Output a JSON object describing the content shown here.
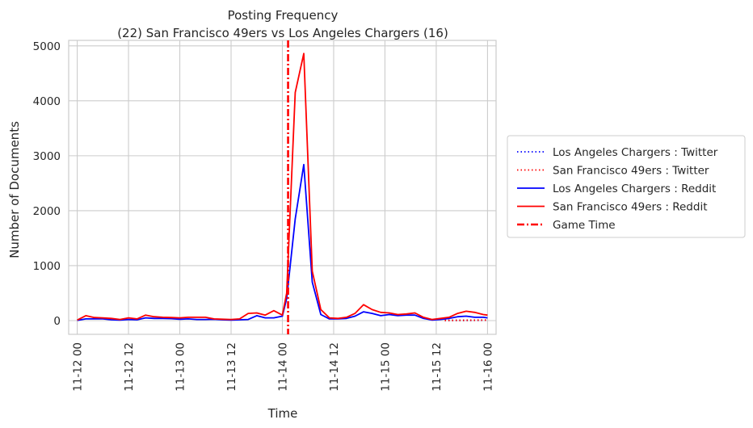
{
  "chart_data": {
    "type": "line",
    "title": "Posting Frequency",
    "subtitle": "(22) San Francisco 49ers vs Los Angeles Chargers (16)",
    "xlabel": "Time",
    "ylabel": "Number of Documents",
    "x_ticks": [
      "11-12 00",
      "11-12 12",
      "11-13 00",
      "11-13 12",
      "11-14 00",
      "11-14 12",
      "11-15 00",
      "11-15 12",
      "11-16 00"
    ],
    "y_ticks": [
      "0",
      "1000",
      "2000",
      "3000",
      "4000",
      "5000"
    ],
    "xlim": [
      "2019-11-11 22:00",
      "2019-11-16 02:00"
    ],
    "ylim": [
      -250,
      5100
    ],
    "grid": true,
    "legend_position": "right",
    "game_time": "2019-11-14 01:20",
    "series": [
      {
        "name": "Los Angeles Chargers : Twitter",
        "color": "#0000ff",
        "style": "dotted",
        "points": [
          [
            "2019-11-15 14:00",
            3
          ],
          [
            "2019-11-15 16:00",
            4
          ],
          [
            "2019-11-15 18:00",
            4
          ],
          [
            "2019-11-15 20:00",
            5
          ],
          [
            "2019-11-15 22:00",
            6
          ],
          [
            "2019-11-16 00:00",
            7
          ]
        ]
      },
      {
        "name": "San Francisco 49ers : Twitter",
        "color": "#ff0000",
        "style": "dotted",
        "points": [
          [
            "2019-11-15 14:00",
            4
          ],
          [
            "2019-11-15 16:00",
            5
          ],
          [
            "2019-11-15 18:00",
            6
          ],
          [
            "2019-11-15 20:00",
            7
          ],
          [
            "2019-11-15 22:00",
            8
          ],
          [
            "2019-11-16 00:00",
            10
          ]
        ]
      },
      {
        "name": "Los Angeles Chargers : Reddit",
        "color": "#0000ff",
        "style": "solid",
        "points": [
          [
            "2019-11-12 00:00",
            5
          ],
          [
            "2019-11-12 02:00",
            30
          ],
          [
            "2019-11-12 04:00",
            30
          ],
          [
            "2019-11-12 06:00",
            30
          ],
          [
            "2019-11-12 08:00",
            15
          ],
          [
            "2019-11-12 10:00",
            10
          ],
          [
            "2019-11-12 12:00",
            20
          ],
          [
            "2019-11-12 14:00",
            15
          ],
          [
            "2019-11-12 16:00",
            50
          ],
          [
            "2019-11-12 18:00",
            40
          ],
          [
            "2019-11-12 20:00",
            40
          ],
          [
            "2019-11-12 22:00",
            35
          ],
          [
            "2019-11-13 00:00",
            25
          ],
          [
            "2019-11-13 02:00",
            30
          ],
          [
            "2019-11-13 04:00",
            20
          ],
          [
            "2019-11-13 06:00",
            20
          ],
          [
            "2019-11-13 08:00",
            25
          ],
          [
            "2019-11-13 10:00",
            15
          ],
          [
            "2019-11-13 12:00",
            10
          ],
          [
            "2019-11-13 14:00",
            15
          ],
          [
            "2019-11-13 16:00",
            20
          ],
          [
            "2019-11-13 18:00",
            90
          ],
          [
            "2019-11-13 20:00",
            50
          ],
          [
            "2019-11-13 22:00",
            50
          ],
          [
            "2019-11-14 00:00",
            80
          ],
          [
            "2019-11-14 01:00",
            400
          ],
          [
            "2019-11-14 03:00",
            1850
          ],
          [
            "2019-11-14 05:00",
            2840
          ],
          [
            "2019-11-14 07:00",
            700
          ],
          [
            "2019-11-14 09:00",
            110
          ],
          [
            "2019-11-14 11:00",
            30
          ],
          [
            "2019-11-14 13:00",
            30
          ],
          [
            "2019-11-14 15:00",
            40
          ],
          [
            "2019-11-14 17:00",
            80
          ],
          [
            "2019-11-14 19:00",
            160
          ],
          [
            "2019-11-14 21:00",
            130
          ],
          [
            "2019-11-14 23:00",
            90
          ],
          [
            "2019-11-15 01:00",
            110
          ],
          [
            "2019-11-15 03:00",
            90
          ],
          [
            "2019-11-15 05:00",
            100
          ],
          [
            "2019-11-15 07:00",
            100
          ],
          [
            "2019-11-15 09:00",
            40
          ],
          [
            "2019-11-15 11:00",
            10
          ],
          [
            "2019-11-15 13:00",
            20
          ],
          [
            "2019-11-15 15:00",
            40
          ],
          [
            "2019-11-15 17:00",
            70
          ],
          [
            "2019-11-15 19:00",
            80
          ],
          [
            "2019-11-15 21:00",
            60
          ],
          [
            "2019-11-15 23:00",
            60
          ],
          [
            "2019-11-16 00:00",
            50
          ]
        ]
      },
      {
        "name": "San Francisco 49ers : Reddit",
        "color": "#ff0000",
        "style": "solid",
        "points": [
          [
            "2019-11-12 00:00",
            10
          ],
          [
            "2019-11-12 02:00",
            90
          ],
          [
            "2019-11-12 04:00",
            55
          ],
          [
            "2019-11-12 06:00",
            50
          ],
          [
            "2019-11-12 08:00",
            40
          ],
          [
            "2019-11-12 10:00",
            20
          ],
          [
            "2019-11-12 12:00",
            50
          ],
          [
            "2019-11-12 14:00",
            30
          ],
          [
            "2019-11-12 16:00",
            100
          ],
          [
            "2019-11-12 18:00",
            70
          ],
          [
            "2019-11-12 20:00",
            60
          ],
          [
            "2019-11-12 22:00",
            55
          ],
          [
            "2019-11-13 00:00",
            50
          ],
          [
            "2019-11-13 02:00",
            60
          ],
          [
            "2019-11-13 04:00",
            60
          ],
          [
            "2019-11-13 06:00",
            60
          ],
          [
            "2019-11-13 08:00",
            30
          ],
          [
            "2019-11-13 10:00",
            25
          ],
          [
            "2019-11-13 12:00",
            20
          ],
          [
            "2019-11-13 14:00",
            30
          ],
          [
            "2019-11-13 16:00",
            130
          ],
          [
            "2019-11-13 18:00",
            140
          ],
          [
            "2019-11-13 20:00",
            100
          ],
          [
            "2019-11-13 22:00",
            180
          ],
          [
            "2019-11-14 00:00",
            100
          ],
          [
            "2019-11-14 01:00",
            500
          ],
          [
            "2019-11-14 03:00",
            4150
          ],
          [
            "2019-11-14 05:00",
            4860
          ],
          [
            "2019-11-14 07:00",
            900
          ],
          [
            "2019-11-14 09:00",
            200
          ],
          [
            "2019-11-14 11:00",
            50
          ],
          [
            "2019-11-14 13:00",
            40
          ],
          [
            "2019-11-14 15:00",
            60
          ],
          [
            "2019-11-14 17:00",
            130
          ],
          [
            "2019-11-14 19:00",
            290
          ],
          [
            "2019-11-14 21:00",
            200
          ],
          [
            "2019-11-14 23:00",
            150
          ],
          [
            "2019-11-15 01:00",
            140
          ],
          [
            "2019-11-15 03:00",
            110
          ],
          [
            "2019-11-15 05:00",
            120
          ],
          [
            "2019-11-15 07:00",
            140
          ],
          [
            "2019-11-15 09:00",
            60
          ],
          [
            "2019-11-15 11:00",
            20
          ],
          [
            "2019-11-15 13:00",
            40
          ],
          [
            "2019-11-15 15:00",
            60
          ],
          [
            "2019-11-15 17:00",
            130
          ],
          [
            "2019-11-15 19:00",
            170
          ],
          [
            "2019-11-15 21:00",
            150
          ],
          [
            "2019-11-15 23:00",
            110
          ],
          [
            "2019-11-16 00:00",
            100
          ]
        ]
      }
    ],
    "legend": [
      {
        "label": "Los Angeles Chargers : Twitter",
        "color": "#0000ff",
        "style": "dotted"
      },
      {
        "label": "San Francisco 49ers : Twitter",
        "color": "#ff0000",
        "style": "dotted"
      },
      {
        "label": "Los Angeles Chargers : Reddit",
        "color": "#0000ff",
        "style": "solid"
      },
      {
        "label": "San Francisco 49ers : Reddit",
        "color": "#ff0000",
        "style": "solid"
      },
      {
        "label": "Game Time",
        "color": "#ff0000",
        "style": "dashdot"
      }
    ]
  }
}
